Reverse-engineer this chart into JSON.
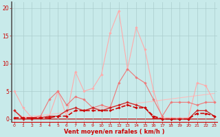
{
  "x": [
    0,
    1,
    2,
    3,
    4,
    5,
    6,
    7,
    8,
    9,
    10,
    11,
    12,
    13,
    14,
    15,
    16,
    17,
    18,
    19,
    20,
    21,
    22,
    23
  ],
  "series": [
    {
      "y": [
        5.0,
        2.0,
        0.2,
        0.2,
        0.5,
        5.0,
        0.5,
        8.5,
        5.0,
        5.5,
        8.0,
        15.5,
        19.5,
        9.0,
        16.5,
        12.5,
        5.0,
        0.2,
        0.2,
        0.2,
        0.2,
        6.5,
        6.0,
        3.0
      ],
      "color": "#ffaaaa",
      "lw": 0.8,
      "marker": "D",
      "markersize": 1.8,
      "zorder": 2,
      "dashed": false
    },
    {
      "y": [
        1.5,
        0.2,
        0.2,
        0.5,
        3.5,
        5.0,
        2.5,
        4.0,
        3.5,
        2.0,
        2.5,
        2.0,
        6.5,
        9.0,
        7.5,
        6.5,
        3.5,
        0.5,
        3.0,
        3.0,
        3.0,
        2.5,
        3.0,
        3.0
      ],
      "color": "#ee7777",
      "lw": 0.8,
      "marker": "D",
      "markersize": 1.8,
      "zorder": 3,
      "dashed": false
    },
    {
      "y": [
        1.5,
        0.0,
        0.0,
        0.2,
        0.5,
        0.5,
        1.5,
        2.0,
        1.5,
        2.0,
        1.5,
        2.0,
        2.5,
        3.0,
        2.5,
        2.0,
        0.2,
        0.0,
        0.0,
        0.0,
        0.0,
        1.5,
        1.5,
        0.5
      ],
      "color": "#cc2222",
      "lw": 0.9,
      "marker": "D",
      "markersize": 1.8,
      "zorder": 4,
      "dashed": false
    },
    {
      "y": [
        0.2,
        0.2,
        0.2,
        0.2,
        0.2,
        0.5,
        0.5,
        1.5,
        1.5,
        1.5,
        1.5,
        1.5,
        2.0,
        2.5,
        2.0,
        2.0,
        0.5,
        0.0,
        0.0,
        0.0,
        0.0,
        1.0,
        1.0,
        0.5
      ],
      "color": "#cc0000",
      "lw": 1.2,
      "marker": "D",
      "markersize": 1.8,
      "zorder": 5,
      "dashed": true
    },
    {
      "y": [
        0.0,
        0.0,
        0.0,
        0.0,
        0.0,
        0.0,
        0.0,
        0.0,
        0.0,
        0.0,
        0.0,
        0.0,
        0.0,
        0.0,
        0.0,
        0.0,
        0.0,
        0.0,
        0.0,
        0.0,
        0.0,
        0.0,
        0.0,
        0.0
      ],
      "color": "#cc0000",
      "lw": 1.2,
      "marker": null,
      "markersize": 0,
      "zorder": 1,
      "dashed": false
    },
    {
      "y": [
        0.3,
        0.4,
        0.5,
        0.6,
        0.8,
        1.0,
        1.2,
        1.4,
        1.6,
        1.8,
        2.0,
        2.2,
        2.4,
        2.6,
        2.8,
        3.0,
        3.2,
        3.4,
        3.6,
        3.8,
        4.0,
        4.2,
        4.4,
        4.6
      ],
      "color": "#ffbbbb",
      "lw": 0.8,
      "marker": null,
      "markersize": 0,
      "zorder": 1,
      "dashed": false
    }
  ],
  "xlim": [
    -0.3,
    23.3
  ],
  "ylim": [
    -0.5,
    21.0
  ],
  "yticks": [
    0,
    5,
    10,
    15,
    20
  ],
  "xticks": [
    0,
    1,
    2,
    3,
    4,
    5,
    6,
    7,
    8,
    9,
    10,
    11,
    12,
    13,
    14,
    15,
    16,
    17,
    18,
    19,
    20,
    21,
    22,
    23
  ],
  "xlabel": "Vent moyen/en rafales ( km/h )",
  "bg_color": "#c8eaea",
  "grid_color": "#aacccc",
  "left_spine_color": "#555555",
  "bottom_spine_color": "#cc0000",
  "label_color": "#cc0000",
  "tick_color": "#cc0000"
}
